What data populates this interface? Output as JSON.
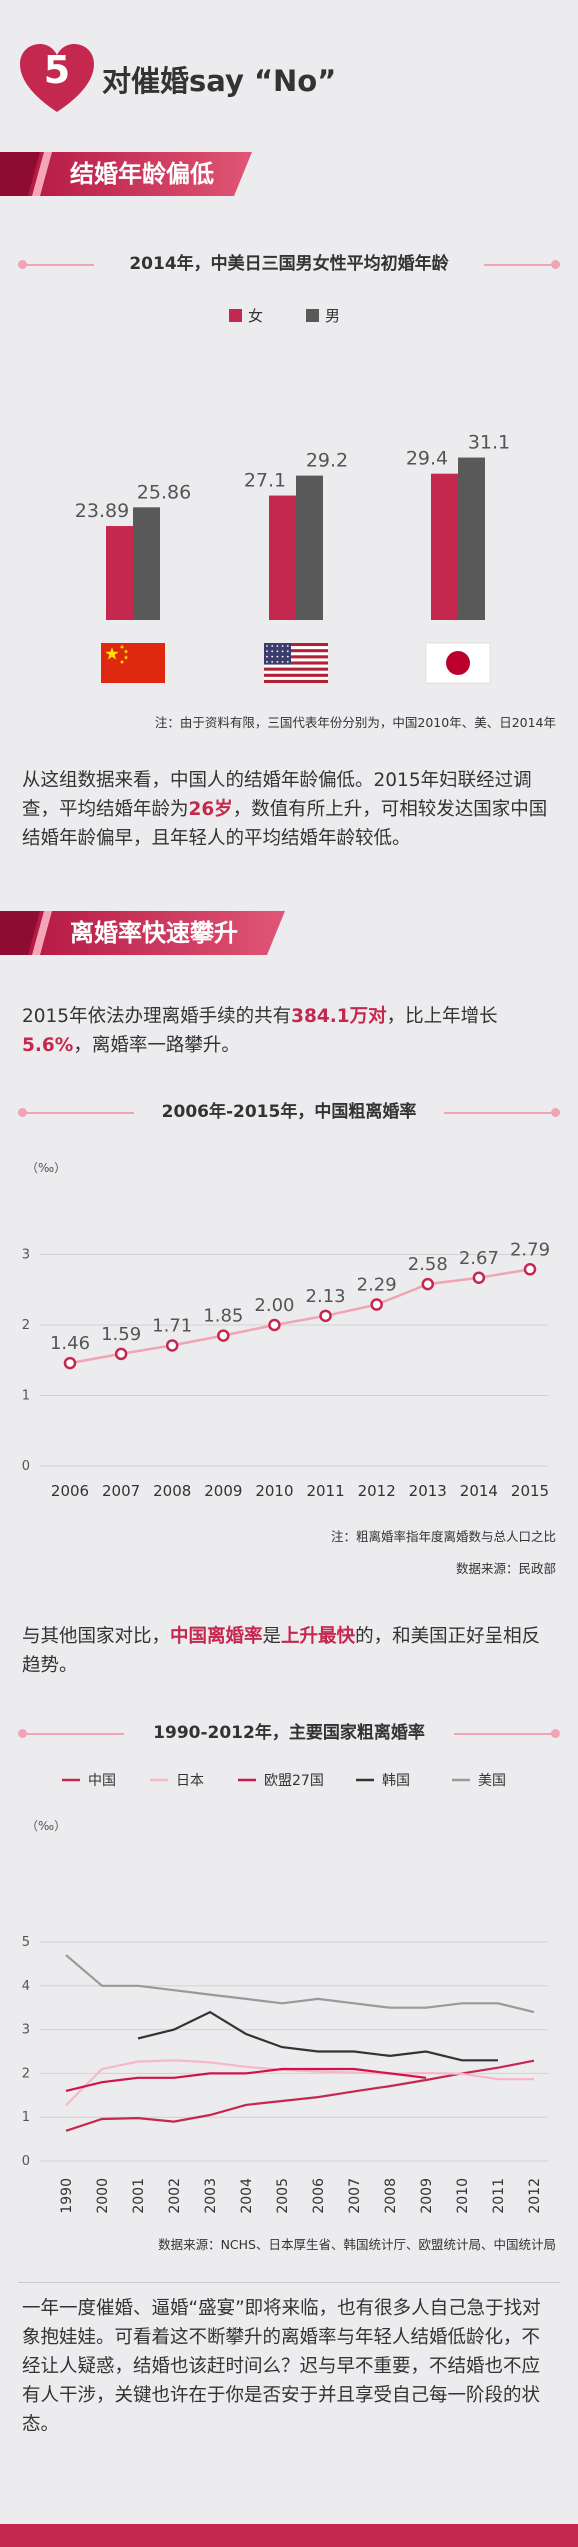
{
  "header": {
    "number": "5",
    "title": "对催婚say “No”"
  },
  "section1": {
    "banner": "结婚年龄偏低",
    "chart_title": "2014年，中美日三国男女性平均初婚年龄",
    "note": "注：由于资料有限，三国代表年份分别为，中国2010年、美、日2014年",
    "para1": "从这组数据来看，中国人的结婚年龄偏低。2015年妇联经过调查，平均结婚年龄为",
    "para_hl": "26岁",
    "para2": "，数值有所上升，可相较发达国家中国结婚年龄偏早，且年轻人的平均结婚年龄较低。"
  },
  "section2": {
    "banner": "离婚率快速攀升",
    "p1a": "2015年依法办理离婚手续的共有",
    "p1b": "384.1万对",
    "p1c": "，比上年增长",
    "p1d": "5.6%",
    "p1e": "，离婚率一路攀升。",
    "chart_title": "2006年-2015年，中国粗离婚率",
    "note1": "注：粗离婚率指年度离婚数与总人口之比",
    "note2": "数据来源：民政部",
    "p2a": "与其他国家对比，",
    "p2b": "中国离婚率",
    "p2c": "是",
    "p2d": "上升最快",
    "p2e": "的，和美国正好呈相反趋势。"
  },
  "section3": {
    "chart_title": "1990-2012年，主要国家粗离婚率",
    "source": "数据来源：NCHS、日本厚生省、韩国统计厅、欧盟统计局、中国统计局",
    "closing": "一年一度催婚、逼婚“盛宴”即将来临，也有很多人自己急于找对象抱娃娃。可看着这不断攀升的离婚率与年轻人结婚低龄化，不经让人疑惑，结婚也该赶时间么？迟与早不重要，不结婚也不应有人干涉，关键也许在于你是否安于并且享受自己每一阶段的状态。"
  },
  "colors": {
    "accent": "#c5284e",
    "female": "#c5284e",
    "male": "#595959",
    "pink": "#f0a4b4"
  },
  "chart_data": [
    {
      "type": "bar",
      "title": "2014年，中美日三国男女性平均初婚年龄",
      "categories": [
        "中国",
        "美国",
        "日本"
      ],
      "series": [
        {
          "name": "女",
          "values": [
            23.89,
            27.1,
            29.4
          ],
          "labels": [
            "23.89",
            "27.1",
            "29.4"
          ]
        },
        {
          "name": "男",
          "values": [
            25.86,
            29.2,
            31.1
          ],
          "labels": [
            "25.86",
            "29.2",
            "31.1"
          ]
        }
      ],
      "legend": "top-center",
      "category_icons": [
        "china-flag",
        "usa-flag",
        "japan-flag"
      ]
    },
    {
      "type": "line",
      "title": "2006年-2015年，中国粗离婚率",
      "unit": "（‰）",
      "x": [
        "2006",
        "2007",
        "2008",
        "2009",
        "2010",
        "2011",
        "2012",
        "2013",
        "2014",
        "2015"
      ],
      "values": [
        1.46,
        1.59,
        1.71,
        1.85,
        2.0,
        2.13,
        2.29,
        2.58,
        2.67,
        2.79
      ],
      "labels": [
        "1.46",
        "1.59",
        "1.71",
        "1.85",
        "2.00",
        "2.13",
        "2.29",
        "2.58",
        "2.67",
        "2.79"
      ],
      "yticks": [
        "0",
        "1",
        "2",
        "3"
      ],
      "ylim": [
        0,
        3
      ],
      "grid": true
    },
    {
      "type": "line",
      "title": "1990-2012年，主要国家粗离婚率",
      "unit": "（‰）",
      "x": [
        "1990",
        "2000",
        "2001",
        "2002",
        "2003",
        "2004",
        "2005",
        "2006",
        "2007",
        "2008",
        "2009",
        "2010",
        "2011",
        "2012"
      ],
      "yticks": [
        "0",
        "1",
        "2",
        "3",
        "4",
        "5"
      ],
      "ylim": [
        0,
        5
      ],
      "legend": "top",
      "grid": true,
      "series": [
        {
          "name": "中国",
          "color": "#c5284e",
          "values": [
            0.69,
            0.96,
            0.98,
            0.9,
            1.05,
            1.28,
            1.37,
            1.46,
            1.59,
            1.71,
            1.85,
            2.0,
            2.13,
            2.29
          ]
        },
        {
          "name": "日本",
          "color": "#f6b8c6",
          "values": [
            1.27,
            2.1,
            2.27,
            2.3,
            2.25,
            2.15,
            2.08,
            2.04,
            2.02,
            1.99,
            2.01,
            1.99,
            1.87,
            1.87
          ]
        },
        {
          "name": "欧盟27国",
          "color": "#d0144a",
          "values": [
            1.6,
            1.8,
            1.9,
            1.9,
            2.0,
            2.0,
            2.1,
            2.1,
            2.1,
            2.0,
            1.9,
            null,
            null,
            null
          ]
        },
        {
          "name": "韩国",
          "color": "#333333",
          "values": [
            null,
            null,
            2.8,
            3.0,
            3.4,
            2.9,
            2.6,
            2.5,
            2.5,
            2.4,
            2.5,
            2.3,
            2.3,
            null
          ]
        },
        {
          "name": "美国",
          "color": "#999999",
          "values": [
            4.7,
            4.0,
            4.0,
            3.9,
            3.8,
            3.7,
            3.6,
            3.7,
            3.6,
            3.5,
            3.5,
            3.6,
            3.6,
            3.4
          ]
        }
      ]
    }
  ]
}
